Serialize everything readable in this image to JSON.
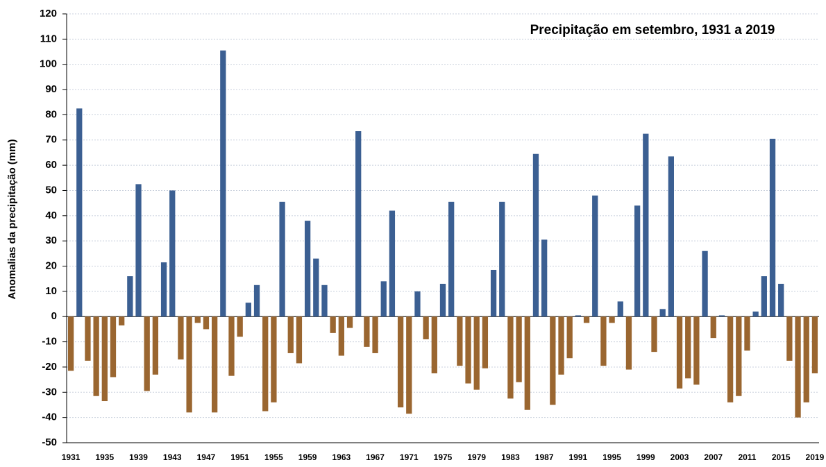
{
  "chart_data": {
    "type": "bar",
    "title": "Precipitação em setembro, 1931 a 2019",
    "y_label": "Anomalias da precipitação (mm)",
    "categories": [
      "1931",
      null,
      null,
      null,
      "1935",
      null,
      null,
      null,
      "1939",
      null,
      null,
      null,
      "1943",
      null,
      null,
      null,
      "1947",
      null,
      null,
      null,
      "1951",
      null,
      null,
      null,
      "1955",
      null,
      null,
      null,
      "1959",
      null,
      null,
      null,
      "1963",
      null,
      null,
      null,
      "1967",
      null,
      null,
      null,
      "1971",
      null,
      null,
      null,
      "1975",
      null,
      null,
      null,
      "1979",
      null,
      null,
      null,
      "1983",
      null,
      null,
      null,
      "1987",
      null,
      null,
      null,
      "1991",
      null,
      null,
      null,
      "1995",
      null,
      null,
      null,
      "1999",
      null,
      null,
      null,
      "2003",
      null,
      null,
      null,
      "2007",
      null,
      null,
      null,
      "2011",
      null,
      null,
      null,
      "2015",
      null,
      null,
      null,
      "2019"
    ],
    "values": [
      -21.5,
      82.5,
      -17.5,
      -31.5,
      -33.5,
      -24,
      -3.5,
      16,
      52.5,
      -29.5,
      -23,
      21.5,
      50,
      -17,
      -38,
      -2.5,
      -5,
      -38,
      105.5,
      -23.5,
      -8,
      5.5,
      12.5,
      -37.5,
      -34,
      45.5,
      -14.5,
      -18.5,
      38,
      23,
      12.5,
      -6.5,
      -15.5,
      -4.5,
      73.5,
      -12,
      -14.5,
      14,
      42,
      -36,
      -38.5,
      10,
      -9,
      -22.5,
      13,
      45.5,
      -19.5,
      -26.5,
      -29,
      -20.5,
      18.5,
      45.5,
      -32.5,
      -26,
      -37,
      64.5,
      30.5,
      -35,
      -23,
      -16.5,
      0.5,
      -2.5,
      48,
      -19.5,
      -2.5,
      6,
      -21,
      44,
      72.5,
      -14,
      3,
      63.5,
      -28.5,
      -24.5,
      -27,
      26,
      -8.5,
      0.5,
      -34,
      -31.5,
      -13.5,
      2,
      16,
      70.5,
      13,
      -17.5,
      -40,
      -34,
      -22.5
    ],
    "positive_color": "#3b5f92",
    "negative_color": "#9a6630",
    "ylim": [
      -50,
      120
    ],
    "yticks": [
      -50,
      -40,
      -30,
      -20,
      -10,
      0,
      10,
      20,
      30,
      40,
      50,
      60,
      70,
      80,
      90,
      100,
      110,
      120
    ],
    "grid": true
  }
}
